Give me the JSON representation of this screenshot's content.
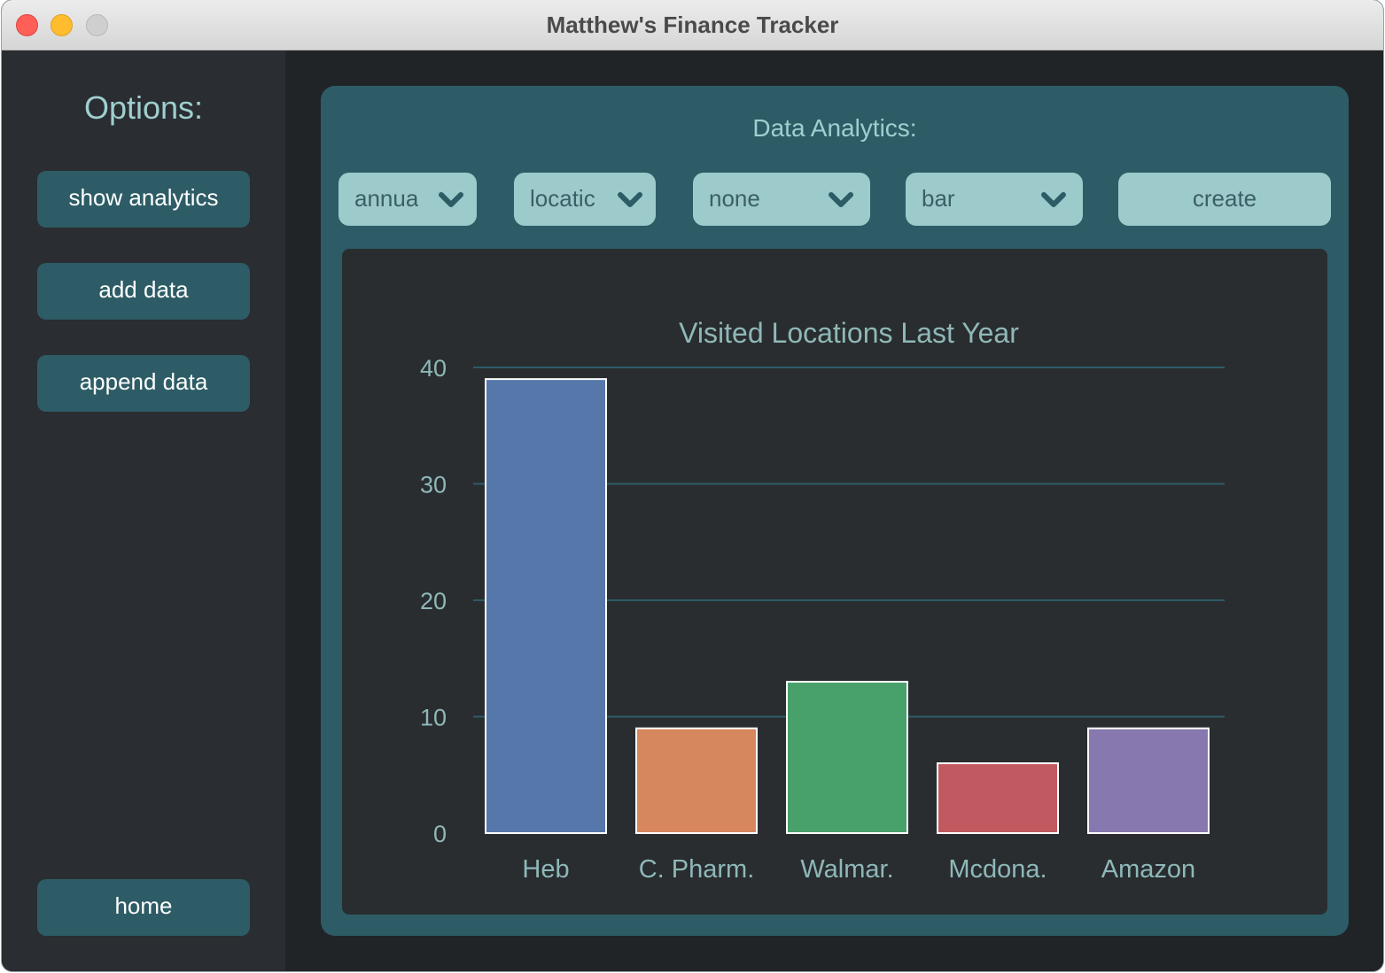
{
  "window": {
    "title": "Matthew's Finance Tracker"
  },
  "sidebar": {
    "title": "Options:",
    "buttons": [
      {
        "label": "show analytics"
      },
      {
        "label": "add data"
      },
      {
        "label": "append data"
      }
    ],
    "home_label": "home"
  },
  "analytics": {
    "title": "Data Analytics:",
    "dropdowns": [
      {
        "value": "annua",
        "icon": "chevron-down-icon"
      },
      {
        "value": "locatic",
        "icon": "chevron-down-icon"
      },
      {
        "value": "none",
        "icon": "chevron-down-icon"
      },
      {
        "value": "bar",
        "icon": "chevron-down-icon"
      }
    ],
    "create_label": "create"
  },
  "colors": {
    "sidebar_button": "#2d5c66",
    "panel": "#2d5c66",
    "dropdown": "#9dcbcb",
    "accent_text": "#9fcfcf"
  },
  "chart_data": {
    "type": "bar",
    "title": "Visited Locations Last Year",
    "xlabel": "",
    "ylabel": "",
    "categories": [
      "Heb",
      "C. Pharm.",
      "Walmar.",
      "Mcdona.",
      "Amazon"
    ],
    "values": [
      39,
      9,
      13,
      6,
      9
    ],
    "colors": [
      "#5677aa",
      "#d6875e",
      "#48a06a",
      "#c05a60",
      "#8779af"
    ],
    "yticks": [
      0,
      10,
      20,
      30,
      40
    ],
    "ylim": [
      0,
      40
    ],
    "grid": true,
    "legend": "none"
  }
}
